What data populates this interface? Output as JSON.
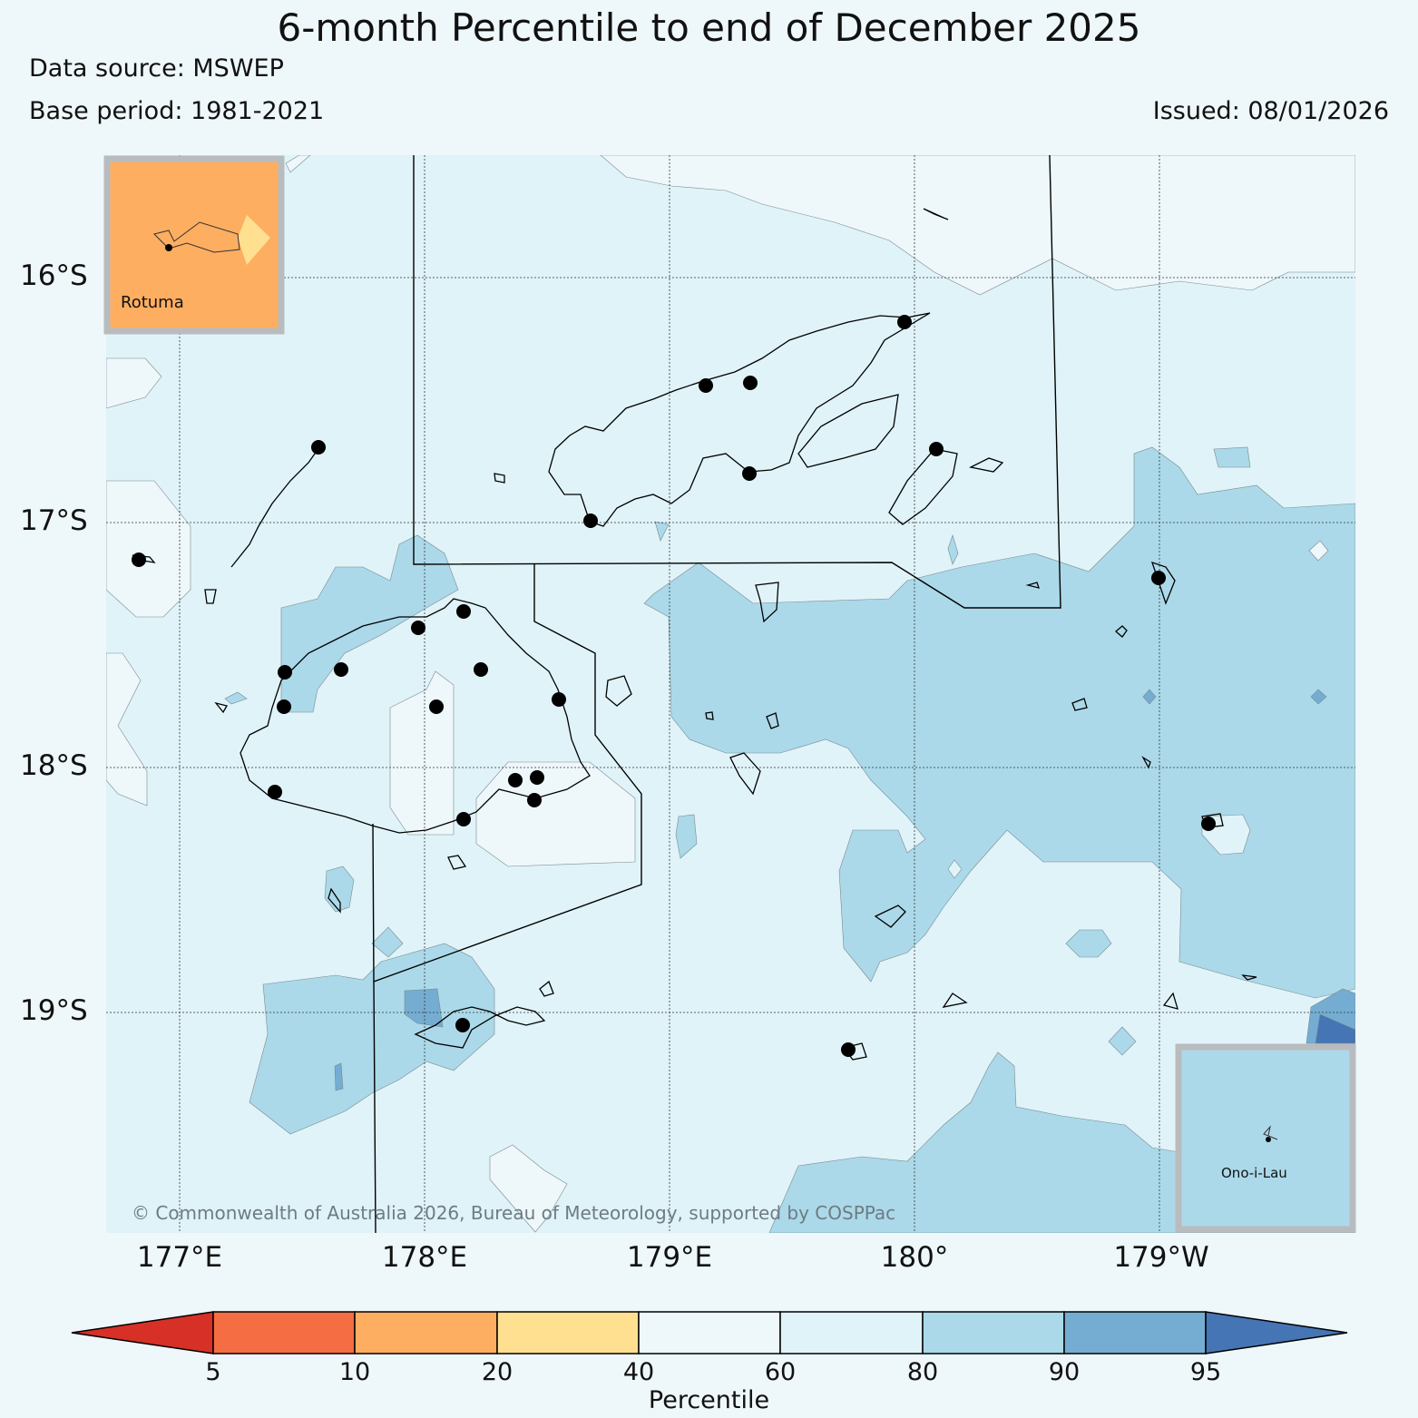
{
  "title": "6-month Percentile to end of December 2025",
  "data_source": "Data source: MSWEP",
  "base_period": "Base period: 1981-2021",
  "issued": "Issued: 08/01/2026",
  "copyright": "© Commonwealth of Australia 2026, Bureau of Meteorology, supported by COSPPac",
  "lat_labels": [
    "16°S",
    "17°S",
    "18°S",
    "19°S"
  ],
  "lon_labels": [
    "177°E",
    "178°E",
    "179°E",
    "180°",
    "179°W"
  ],
  "insets": {
    "rotuma": {
      "label": "Rotuma",
      "category": "10-20",
      "color": "#fdae61"
    },
    "ono_i_lau": {
      "label": "Ono-i-Lau",
      "category": "80-90",
      "color": "#abd9e9"
    }
  },
  "colorbar": {
    "label": "Percentile",
    "ticks": [
      "5",
      "10",
      "20",
      "40",
      "60",
      "80",
      "90",
      "95"
    ],
    "colors": {
      "below_5": "#d73027",
      "5-10": "#f46d43",
      "10-20": "#fdae61",
      "20-40": "#fee090",
      "40-60": "#eef7fa",
      "60-80": "#e0f3f8",
      "80-90": "#abd9e9",
      "90-95": "#74add1",
      "above_95": "#4575b4"
    }
  },
  "stations_count": 27
}
